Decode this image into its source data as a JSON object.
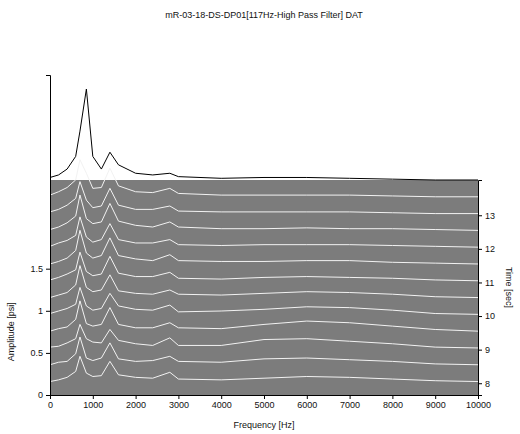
{
  "chart_data": {
    "type": "waterfall",
    "title": "mR-03-18-DS-DP01[117Hz-High Pass Filter] DAT",
    "x_label": "Frequency [Hz]",
    "y_label": "Amplitude [psi]",
    "y2_label": "Time [sec]",
    "x": [
      0,
      200,
      400,
      600,
      700,
      850,
      1000,
      1200,
      1400,
      1600,
      2000,
      2400,
      2800,
      3000,
      4000,
      5000,
      6000,
      7000,
      8000,
      9000,
      10000
    ],
    "xlim": [
      0,
      10000
    ],
    "xticks": [
      0,
      1000,
      2000,
      3000,
      4000,
      5000,
      6000,
      7000,
      8000,
      9000,
      10000
    ],
    "ylim": [
      0,
      3.8
    ],
    "yticks": [
      0,
      0.5,
      1,
      1.5
    ],
    "y2lim": [
      7.65,
      14.05
    ],
    "y2ticks": [
      8,
      9,
      10,
      11,
      12,
      13
    ],
    "series": [
      {
        "time": 8,
        "color": "#f2f2f2",
        "values": [
          0.02,
          0.04,
          0.07,
          0.14,
          0.32,
          0.12,
          0.08,
          0.09,
          0.26,
          0.1,
          0.07,
          0.06,
          0.13,
          0.05,
          0.04,
          0.06,
          0.08,
          0.07,
          0.05,
          0.03,
          0.02
        ]
      },
      {
        "time": 8.5,
        "color": "#f2f2f2",
        "values": [
          0.02,
          0.05,
          0.06,
          0.15,
          0.35,
          0.1,
          0.07,
          0.1,
          0.28,
          0.09,
          0.06,
          0.07,
          0.12,
          0.06,
          0.05,
          0.09,
          0.1,
          0.08,
          0.06,
          0.03,
          0.02
        ]
      },
      {
        "time": 9,
        "color": "#f2f2f2",
        "values": [
          0.03,
          0.04,
          0.08,
          0.13,
          0.3,
          0.13,
          0.09,
          0.08,
          0.24,
          0.11,
          0.07,
          0.05,
          0.14,
          0.05,
          0.05,
          0.12,
          0.13,
          0.1,
          0.07,
          0.03,
          0.02
        ]
      },
      {
        "time": 9.5,
        "color": "#f2f2f2",
        "values": [
          0.02,
          0.05,
          0.07,
          0.16,
          0.38,
          0.11,
          0.08,
          0.1,
          0.3,
          0.1,
          0.06,
          0.06,
          0.12,
          0.06,
          0.05,
          0.1,
          0.14,
          0.12,
          0.08,
          0.04,
          0.02
        ]
      },
      {
        "time": 10,
        "color": "#f2f2f2",
        "values": [
          0.03,
          0.06,
          0.09,
          0.14,
          0.34,
          0.12,
          0.07,
          0.09,
          0.27,
          0.12,
          0.08,
          0.07,
          0.13,
          0.05,
          0.06,
          0.08,
          0.11,
          0.1,
          0.07,
          0.03,
          0.02
        ]
      },
      {
        "time": 10.5,
        "color": "#f2f2f2",
        "values": [
          0.02,
          0.05,
          0.08,
          0.17,
          0.4,
          0.14,
          0.09,
          0.11,
          0.29,
          0.1,
          0.07,
          0.06,
          0.11,
          0.06,
          0.05,
          0.07,
          0.09,
          0.08,
          0.06,
          0.03,
          0.02
        ]
      },
      {
        "time": 11,
        "color": "#f2f2f2",
        "values": [
          0.03,
          0.06,
          0.1,
          0.15,
          0.36,
          0.13,
          0.08,
          0.1,
          0.31,
          0.11,
          0.07,
          0.07,
          0.12,
          0.05,
          0.04,
          0.06,
          0.07,
          0.06,
          0.05,
          0.03,
          0.02
        ]
      },
      {
        "time": 11.5,
        "color": "#f2f2f2",
        "values": [
          0.02,
          0.05,
          0.09,
          0.18,
          0.42,
          0.15,
          0.09,
          0.12,
          0.33,
          0.12,
          0.08,
          0.06,
          0.13,
          0.06,
          0.05,
          0.05,
          0.06,
          0.06,
          0.04,
          0.03,
          0.02
        ]
      },
      {
        "time": 12,
        "color": "#f2f2f2",
        "values": [
          0.03,
          0.07,
          0.1,
          0.16,
          0.38,
          0.14,
          0.08,
          0.11,
          0.3,
          0.11,
          0.07,
          0.07,
          0.11,
          0.05,
          0.04,
          0.05,
          0.05,
          0.05,
          0.04,
          0.03,
          0.02
        ]
      },
      {
        "time": 12.5,
        "color": "#f2f2f2",
        "values": [
          0.03,
          0.06,
          0.11,
          0.19,
          0.44,
          0.16,
          0.1,
          0.12,
          0.34,
          0.13,
          0.08,
          0.06,
          0.12,
          0.06,
          0.04,
          0.04,
          0.05,
          0.04,
          0.04,
          0.03,
          0.02
        ]
      },
      {
        "time": 13,
        "color": "#f2f2f2",
        "values": [
          0.04,
          0.07,
          0.12,
          0.2,
          0.4,
          0.18,
          0.09,
          0.11,
          0.32,
          0.12,
          0.07,
          0.07,
          0.11,
          0.05,
          0.04,
          0.04,
          0.04,
          0.04,
          0.03,
          0.02,
          0.02
        ]
      },
      {
        "time": 13.5,
        "color": "#f2f2f2",
        "values": [
          0.04,
          0.08,
          0.13,
          0.22,
          0.46,
          0.3,
          0.12,
          0.13,
          0.36,
          0.15,
          0.08,
          0.07,
          0.12,
          0.06,
          0.04,
          0.04,
          0.04,
          0.04,
          0.03,
          0.02,
          0.02
        ]
      },
      {
        "time": 14,
        "color": "#000000",
        "values": [
          0.05,
          0.08,
          0.15,
          0.3,
          0.6,
          1.1,
          0.3,
          0.15,
          0.35,
          0.2,
          0.1,
          0.08,
          0.1,
          0.06,
          0.04,
          0.05,
          0.05,
          0.04,
          0.03,
          0.02,
          0.02
        ]
      }
    ]
  }
}
